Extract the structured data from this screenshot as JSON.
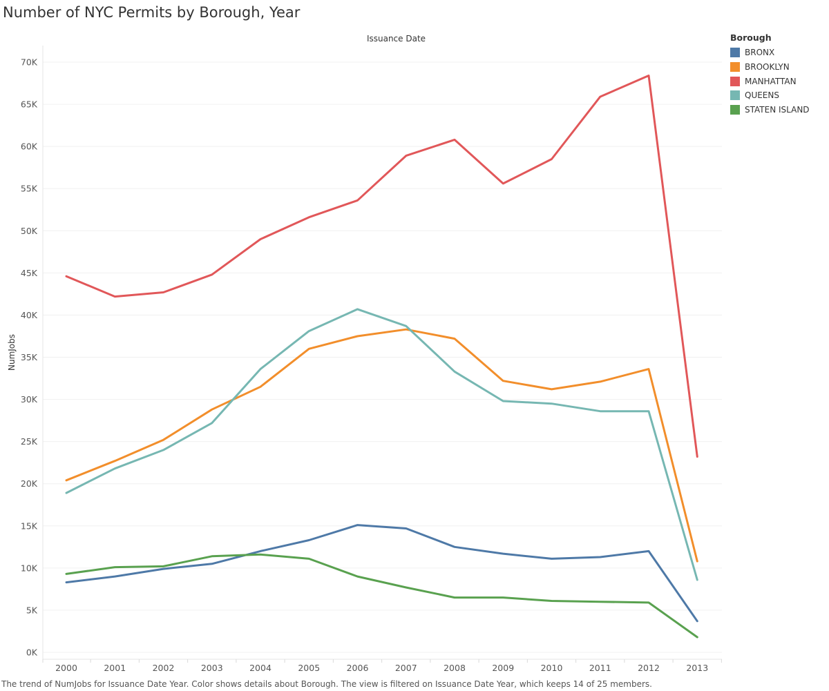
{
  "page": {
    "title": "Number of NYC Permits by Borough, Year",
    "footer": "The trend of NumJobs for Issuance Date Year.  Color shows details about Borough. The view is filtered on Issuance Date Year, which keeps 14 of 25 members."
  },
  "legend": {
    "title": "Borough",
    "items": [
      {
        "label": "BRONX",
        "color": "#4e79a7"
      },
      {
        "label": "BROOKLYN",
        "color": "#f28e2b"
      },
      {
        "label": "MANHATTAN",
        "color": "#e15759"
      },
      {
        "label": "QUEENS",
        "color": "#76b7b2"
      },
      {
        "label": "STATEN ISLAND",
        "color": "#59a14f"
      }
    ]
  },
  "chart_data": {
    "type": "line",
    "title": "Number of NYC Permits by Borough, Year",
    "x_header": "Issuance Date",
    "ylabel": "NumJobs",
    "xlabel": "",
    "ylim": [
      0,
      70000
    ],
    "y_ticks": [
      0,
      5000,
      10000,
      15000,
      20000,
      25000,
      30000,
      35000,
      40000,
      45000,
      50000,
      55000,
      60000,
      65000,
      70000
    ],
    "y_tick_labels": [
      "0K",
      "5K",
      "10K",
      "15K",
      "20K",
      "25K",
      "30K",
      "35K",
      "40K",
      "45K",
      "50K",
      "55K",
      "60K",
      "65K",
      "70K"
    ],
    "grid": true,
    "legend_position": "top-right",
    "categories": [
      "2000",
      "2001",
      "2002",
      "2003",
      "2004",
      "2005",
      "2006",
      "2007",
      "2008",
      "2009",
      "2010",
      "2011",
      "2012",
      "2013"
    ],
    "series": [
      {
        "name": "BRONX",
        "color": "#4e79a7",
        "values": [
          8300,
          9000,
          9900,
          10500,
          12000,
          13300,
          15100,
          14700,
          12500,
          11700,
          11100,
          11300,
          12000,
          3700
        ]
      },
      {
        "name": "BROOKLYN",
        "color": "#f28e2b",
        "values": [
          20400,
          22700,
          25200,
          28800,
          31500,
          36000,
          37500,
          38300,
          37200,
          32200,
          31200,
          32100,
          33600,
          10800
        ]
      },
      {
        "name": "MANHATTAN",
        "color": "#e15759",
        "values": [
          44600,
          42200,
          42700,
          44800,
          49000,
          51600,
          53600,
          58900,
          60800,
          55600,
          58500,
          65900,
          68400,
          23200
        ]
      },
      {
        "name": "QUEENS",
        "color": "#76b7b2",
        "values": [
          18900,
          21800,
          24000,
          27200,
          33600,
          38100,
          40700,
          38700,
          33300,
          29800,
          29500,
          28600,
          28600,
          8600
        ]
      },
      {
        "name": "STATEN ISLAND",
        "color": "#59a14f",
        "values": [
          9300,
          10100,
          10200,
          11400,
          11600,
          11100,
          9000,
          7700,
          6500,
          6500,
          6100,
          6000,
          5900,
          1800
        ]
      }
    ]
  }
}
